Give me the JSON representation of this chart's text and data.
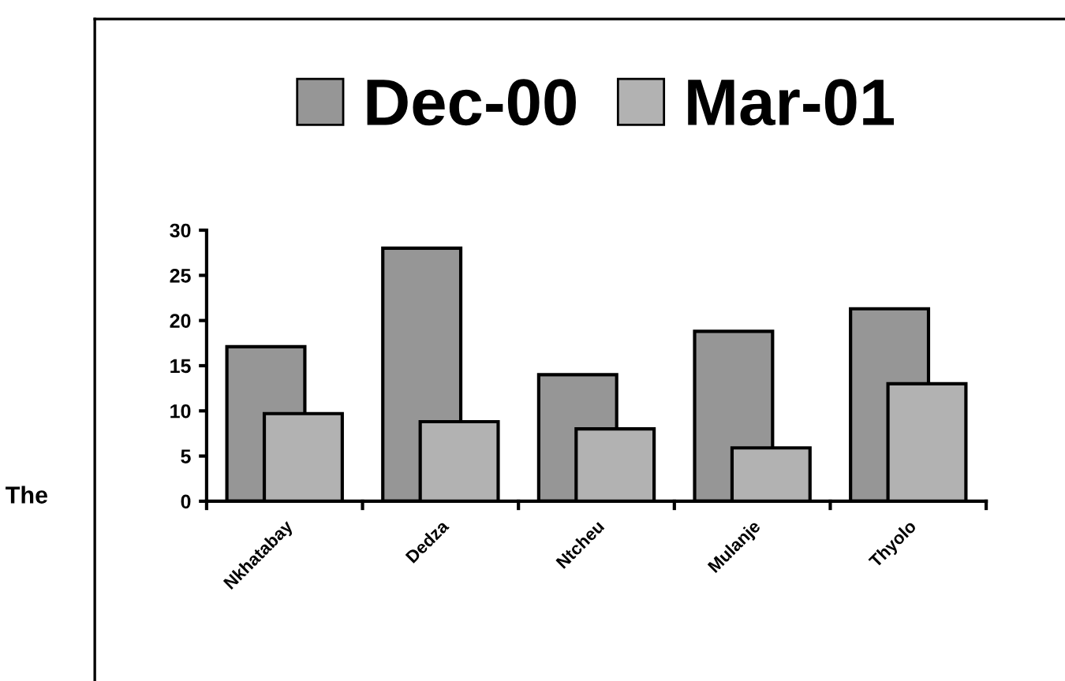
{
  "chart_data": {
    "type": "bar",
    "categories": [
      "Nkhatabay",
      "Dedza",
      "Ntcheu",
      "Mulanje",
      "Thyolo"
    ],
    "series": [
      {
        "name": "Dec-00",
        "color": "#969696",
        "values": [
          17.1,
          28,
          14,
          18.8,
          21.3
        ]
      },
      {
        "name": "Mar-01",
        "color": "#b2b2b2",
        "values": [
          9.7,
          8.8,
          8,
          5.9,
          13
        ]
      }
    ],
    "ylim": [
      0,
      30
    ],
    "yticks": [
      0,
      5,
      10,
      15,
      20,
      25,
      30
    ],
    "grid": false,
    "legend": "top",
    "annotations": [
      "The"
    ]
  }
}
